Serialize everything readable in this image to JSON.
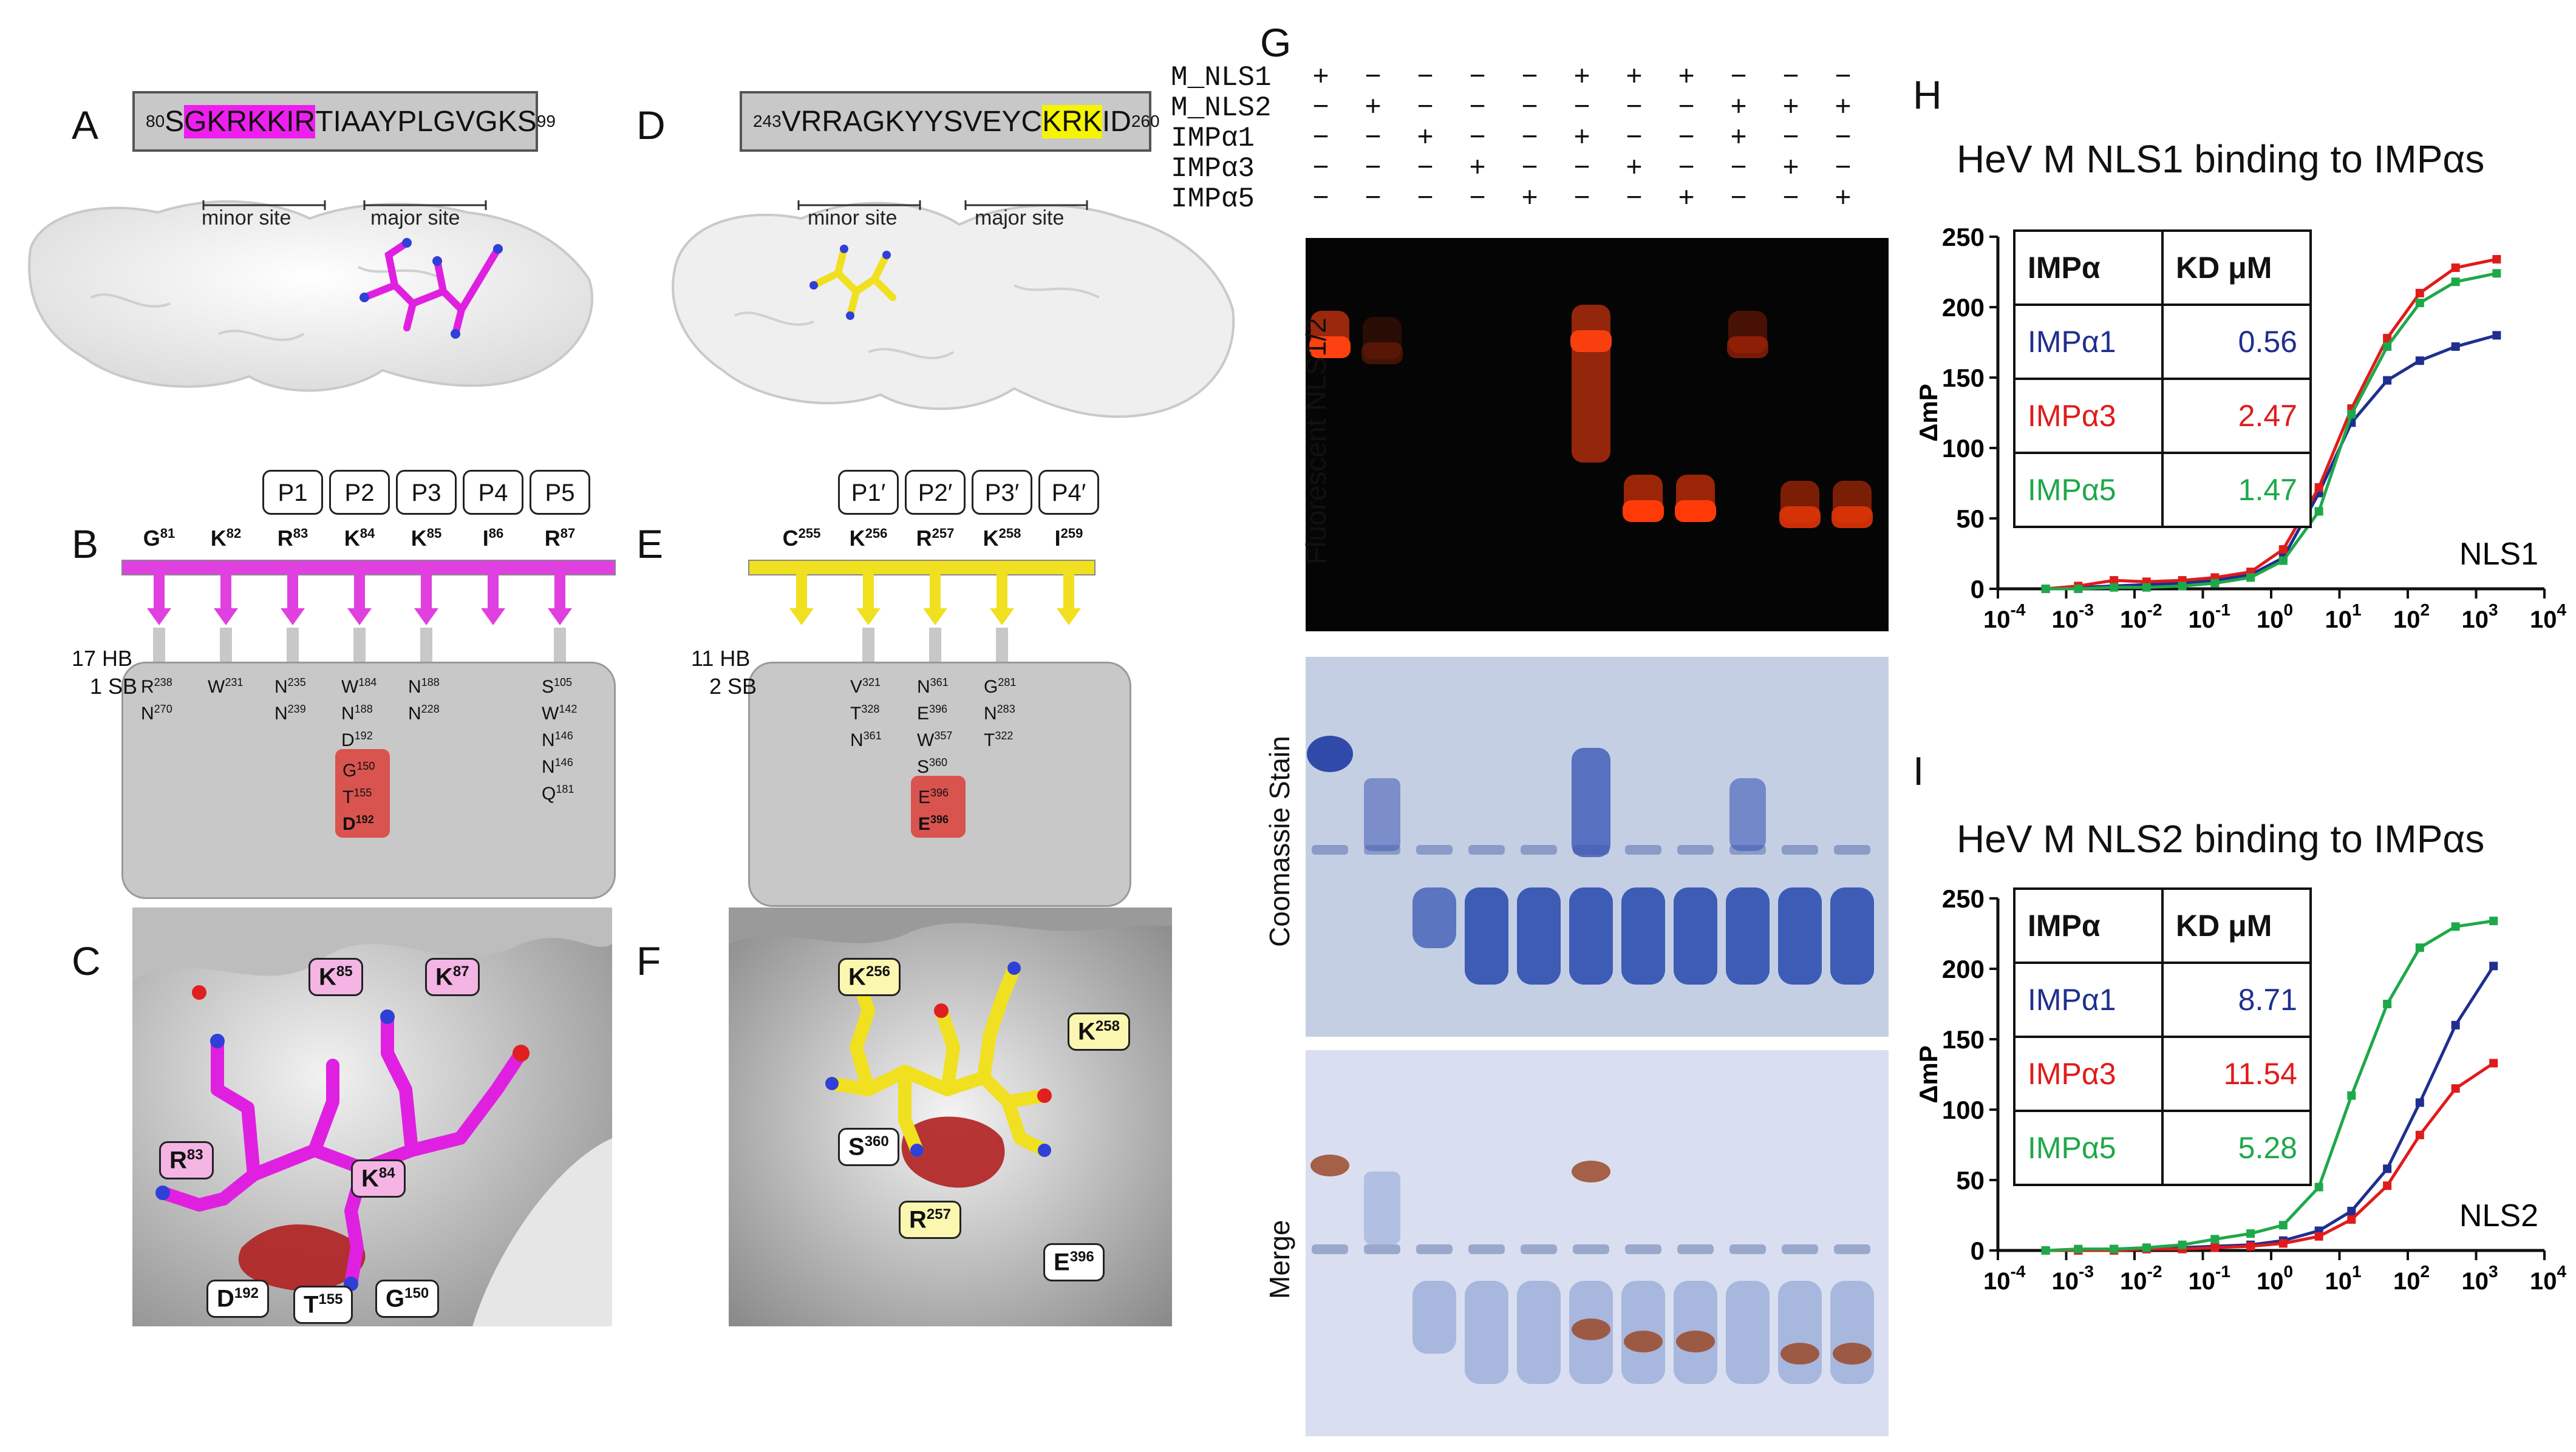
{
  "panels": {
    "A": "A",
    "B": "B",
    "C": "C",
    "D": "D",
    "E": "E",
    "F": "F",
    "G": "G",
    "H": "H",
    "I": "I"
  },
  "panelA": {
    "seq_start": "80",
    "seq_prefix": "S",
    "seq_highlight": "GKRKKIR",
    "seq_rest": "TIAAYPLGVGKS",
    "seq_end": "99",
    "minor_site": "minor site",
    "major_site": "major site"
  },
  "panelD": {
    "seq_start": "243",
    "seq_prefix": "VRRAGKYYSVEYC",
    "seq_highlight": "KRK",
    "seq_rest": "I",
    "seq_last": "D",
    "seq_end": "260",
    "minor_site": "minor site",
    "major_site": "major site"
  },
  "panelB": {
    "pockets": [
      "P1",
      "P2",
      "P3",
      "P4",
      "P5"
    ],
    "residues": [
      {
        "aa": "G",
        "num": "81"
      },
      {
        "aa": "K",
        "num": "82"
      },
      {
        "aa": "R",
        "num": "83"
      },
      {
        "aa": "K",
        "num": "84"
      },
      {
        "aa": "K",
        "num": "85"
      },
      {
        "aa": "I",
        "num": "86"
      },
      {
        "aa": "R",
        "num": "87"
      }
    ],
    "hb": "17 HB",
    "sb": "1 SB",
    "contacts": [
      [
        [
          "R",
          "238"
        ],
        [
          "N",
          "270"
        ]
      ],
      [
        [
          "W",
          "231"
        ]
      ],
      [
        [
          "N",
          "235"
        ],
        [
          "N",
          "239"
        ]
      ],
      [
        [
          "W",
          "184"
        ],
        [
          "N",
          "188"
        ],
        [
          "D",
          "192"
        ]
      ],
      [
        [
          "N",
          "188"
        ],
        [
          "N",
          "228"
        ]
      ],
      [],
      [
        [
          "S",
          "105"
        ],
        [
          "W",
          "142"
        ],
        [
          "N",
          "146"
        ],
        [
          "N",
          "146"
        ],
        [
          "Q",
          "181"
        ]
      ]
    ],
    "red_contacts": [
      [
        "G",
        "150"
      ],
      [
        "T",
        "155"
      ],
      [
        "D",
        "192"
      ]
    ]
  },
  "panelE": {
    "pockets": [
      "P1′",
      "P2′",
      "P3′",
      "P4′"
    ],
    "residues": [
      {
        "aa": "C",
        "num": "255"
      },
      {
        "aa": "K",
        "num": "256"
      },
      {
        "aa": "R",
        "num": "257"
      },
      {
        "aa": "K",
        "num": "258"
      },
      {
        "aa": "I",
        "num": "259"
      }
    ],
    "hb": "11 HB",
    "sb": "2 SB",
    "contacts": [
      [],
      [
        [
          "V",
          "321"
        ],
        [
          "T",
          "328"
        ],
        [
          "N",
          "361"
        ]
      ],
      [
        [
          "N",
          "361"
        ],
        [
          "E",
          "396"
        ],
        [
          "W",
          "357"
        ],
        [
          "S",
          "360"
        ]
      ],
      [
        [
          "G",
          "281"
        ],
        [
          "N",
          "283"
        ],
        [
          "T",
          "322"
        ]
      ],
      []
    ],
    "red_contacts": [
      [
        "E",
        "396"
      ],
      [
        "E",
        "396"
      ]
    ]
  },
  "panelC": {
    "tags": [
      {
        "aa": "K",
        "num": "85"
      },
      {
        "aa": "K",
        "num": "87"
      },
      {
        "aa": "R",
        "num": "83"
      },
      {
        "aa": "K",
        "num": "84"
      },
      {
        "aa": "D",
        "num": "192"
      },
      {
        "aa": "T",
        "num": "155"
      },
      {
        "aa": "G",
        "num": "150"
      }
    ]
  },
  "panelF": {
    "tags": [
      {
        "aa": "K",
        "num": "256"
      },
      {
        "aa": "K",
        "num": "258"
      },
      {
        "aa": "S",
        "num": "360"
      },
      {
        "aa": "R",
        "num": "257"
      },
      {
        "aa": "E",
        "num": "396"
      }
    ]
  },
  "panelG": {
    "rows": [
      {
        "label": "M_NLS1",
        "signs": [
          "+",
          "−",
          "−",
          "−",
          "−",
          "+",
          "+",
          "+",
          "−",
          "−",
          "−"
        ]
      },
      {
        "label": "M_NLS2",
        "signs": [
          "−",
          "+",
          "−",
          "−",
          "−",
          "−",
          "−",
          "−",
          "+",
          "+",
          "+"
        ]
      },
      {
        "label": "IMPα1",
        "signs": [
          "−",
          "−",
          "+",
          "−",
          "−",
          "+",
          "−",
          "−",
          "+",
          "−",
          "−"
        ]
      },
      {
        "label": "IMPα3",
        "signs": [
          "−",
          "−",
          "−",
          "+",
          "−",
          "−",
          "+",
          "−",
          "−",
          "+",
          "−"
        ]
      },
      {
        "label": "IMPα5",
        "signs": [
          "−",
          "−",
          "−",
          "−",
          "+",
          "−",
          "−",
          "+",
          "−",
          "−",
          "+"
        ]
      }
    ],
    "label_fluor": "Fluorescent NLS1/2",
    "label_coom": "Coomassie Stain",
    "label_merge": "Merge"
  },
  "chart_data": [
    {
      "type": "line",
      "title": "HeV M NLS1 binding to IMPαs",
      "ylabel": "ΔmP",
      "xlabel": "",
      "annotation": "NLS1",
      "xscale": "log",
      "xlim": [
        0.0001,
        10000
      ],
      "ylim": [
        0,
        250
      ],
      "yticks": [
        0,
        50,
        100,
        150,
        200,
        250
      ],
      "xticks": [
        "10-4",
        "10-3",
        "10-2",
        "10-1",
        "100",
        "101",
        "102",
        "103",
        "104"
      ],
      "table_header": [
        "IMPα",
        "KD μM"
      ],
      "series": [
        {
          "name": "IMPα1",
          "kd": "0.56",
          "color": "#1f2f8f",
          "x": [
            0.0005,
            0.0015,
            0.005,
            0.015,
            0.05,
            0.15,
            0.5,
            1.5,
            5,
            15,
            50,
            150,
            500,
            2000
          ],
          "y": [
            0,
            1,
            2,
            3,
            4,
            6,
            10,
            22,
            68,
            118,
            148,
            162,
            172,
            180
          ]
        },
        {
          "name": "IMPα3",
          "kd": "2.47",
          "color": "#e01b1b",
          "x": [
            0.0005,
            0.0015,
            0.005,
            0.015,
            0.05,
            0.15,
            0.5,
            1.5,
            5,
            15,
            50,
            150,
            500,
            2000
          ],
          "y": [
            0,
            2,
            6,
            5,
            6,
            8,
            12,
            28,
            72,
            128,
            178,
            210,
            228,
            234
          ]
        },
        {
          "name": "IMPα5",
          "kd": "1.47",
          "color": "#1fa84a",
          "x": [
            0.0005,
            0.0015,
            0.005,
            0.015,
            0.05,
            0.15,
            0.5,
            1.5,
            5,
            15,
            50,
            150,
            500,
            2000
          ],
          "y": [
            0,
            0,
            1,
            1,
            2,
            4,
            8,
            20,
            55,
            124,
            172,
            203,
            218,
            224
          ]
        }
      ]
    },
    {
      "type": "line",
      "title": "HeV M NLS2 binding to IMPαs",
      "ylabel": "ΔmP",
      "xlabel": "",
      "annotation": "NLS2",
      "xscale": "log",
      "xlim": [
        0.0001,
        10000
      ],
      "ylim": [
        0,
        250
      ],
      "yticks": [
        0,
        50,
        100,
        150,
        200,
        250
      ],
      "xticks": [
        "10-4",
        "10-3",
        "10-2",
        "10-1",
        "100",
        "101",
        "102",
        "103",
        "104"
      ],
      "table_header": [
        "IMPα",
        "KD μM"
      ],
      "series": [
        {
          "name": "IMPα1",
          "kd": "8.71",
          "color": "#1f2f8f",
          "x": [
            0.0005,
            0.0015,
            0.005,
            0.015,
            0.05,
            0.15,
            0.5,
            1.5,
            5,
            15,
            50,
            150,
            500,
            1800
          ],
          "y": [
            0,
            0,
            1,
            1,
            2,
            3,
            4,
            7,
            14,
            28,
            58,
            105,
            160,
            202
          ]
        },
        {
          "name": "IMPα3",
          "kd": "11.54",
          "color": "#e01b1b",
          "x": [
            0.0005,
            0.0015,
            0.005,
            0.015,
            0.05,
            0.15,
            0.5,
            1.5,
            5,
            15,
            50,
            150,
            500,
            1800
          ],
          "y": [
            0,
            0,
            0,
            1,
            1,
            2,
            3,
            5,
            10,
            22,
            46,
            82,
            115,
            133
          ]
        },
        {
          "name": "IMPα5",
          "kd": "5.28",
          "color": "#1fa84a",
          "x": [
            0.0005,
            0.0015,
            0.005,
            0.015,
            0.05,
            0.15,
            0.5,
            1.5,
            5,
            15,
            50,
            150,
            500,
            1800
          ],
          "y": [
            0,
            1,
            1,
            2,
            4,
            8,
            12,
            18,
            45,
            110,
            175,
            215,
            230,
            234
          ]
        }
      ]
    }
  ]
}
